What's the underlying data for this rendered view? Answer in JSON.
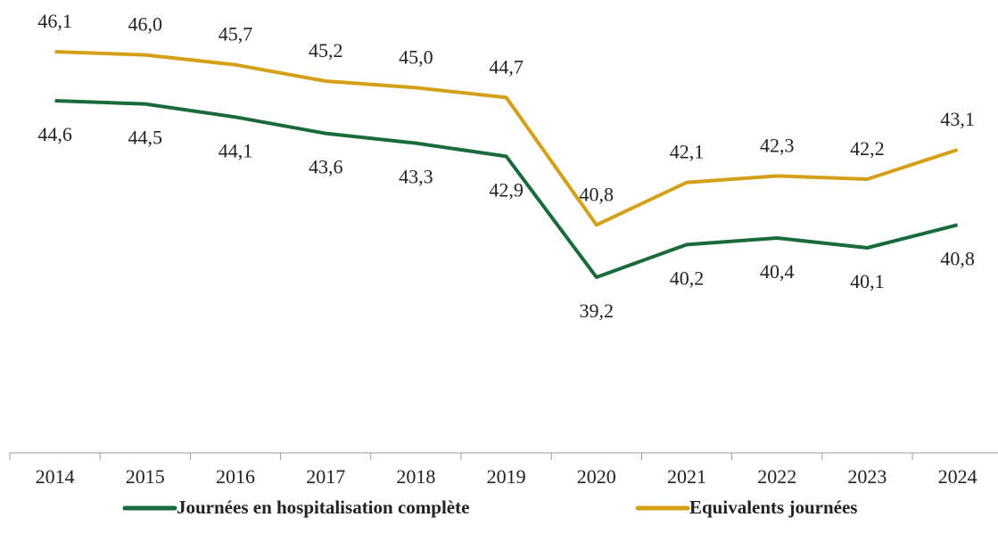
{
  "chart_data": {
    "type": "line",
    "categories": [
      "2014",
      "2015",
      "2016",
      "2017",
      "2018",
      "2019",
      "2020",
      "2021",
      "2022",
      "2023",
      "2024"
    ],
    "series": [
      {
        "name": "Journées en hospitalisation complète",
        "color": "#1a6b3c",
        "values": [
          44.6,
          44.5,
          44.1,
          43.6,
          43.3,
          42.9,
          39.2,
          40.2,
          40.4,
          40.1,
          40.8
        ],
        "value_labels": [
          "44,6",
          "44,5",
          "44,1",
          "43,6",
          "43,3",
          "42,9",
          "39,2",
          "40,2",
          "40,4",
          "40,1",
          "40,8"
        ]
      },
      {
        "name": "Equivalents journées",
        "color": "#d4a017",
        "values": [
          46.1,
          46.0,
          45.7,
          45.2,
          45.0,
          44.7,
          40.8,
          42.1,
          42.3,
          42.2,
          43.1
        ],
        "value_labels": [
          "46,1",
          "46,0",
          "45,7",
          "45,2",
          "45,0",
          "44,7",
          "40,8",
          "42,1",
          "42,3",
          "42,2",
          "43,1"
        ]
      }
    ],
    "legend": "bottom"
  }
}
